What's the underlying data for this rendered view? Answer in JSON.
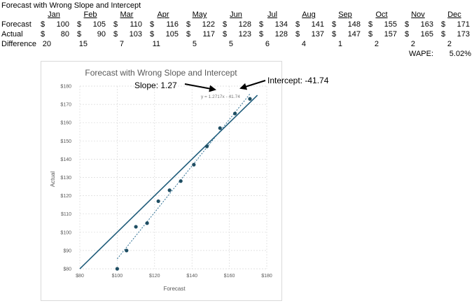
{
  "sheet": {
    "title": "Forecast with Wrong Slope and Intercept",
    "months": [
      "Jan",
      "Feb",
      "Mar",
      "Apr",
      "May",
      "Jun",
      "Jul",
      "Aug",
      "Sep",
      "Oct",
      "Nov",
      "Dec"
    ],
    "forecast_label": "Forecast",
    "actual_label": "Actual",
    "difference_label": "Difference",
    "currency": "$",
    "forecast": [
      100,
      105,
      110,
      116,
      122,
      128,
      134,
      141,
      148,
      155,
      163,
      171
    ],
    "actual": [
      80,
      90,
      103,
      105,
      117,
      123,
      128,
      137,
      147,
      157,
      165,
      173
    ],
    "difference": [
      20,
      15,
      7,
      11,
      5,
      5,
      6,
      4,
      1,
      2,
      2,
      2
    ],
    "wape_label": "WAPE:",
    "wape_value": "5.02%"
  },
  "annotations": {
    "slope": "Slope: 1.27",
    "intercept": "Intercept: -41.74"
  },
  "chart_data": {
    "type": "scatter",
    "title": "Forecast with Wrong Slope and Intercept",
    "xlabel": "Forecast",
    "ylabel": "Actual",
    "xlim": [
      80,
      180
    ],
    "ylim": [
      80,
      180
    ],
    "x_ticks": [
      "$80",
      "$100",
      "$120",
      "$140",
      "$160",
      "$180"
    ],
    "y_ticks": [
      "$80",
      "$90",
      "$100",
      "$110",
      "$120",
      "$130",
      "$140",
      "$150",
      "$160",
      "$170",
      "$180"
    ],
    "grid": true,
    "x": [
      100,
      105,
      110,
      116,
      122,
      128,
      134,
      141,
      148,
      155,
      163,
      171
    ],
    "y": [
      80,
      90,
      103,
      105,
      117,
      123,
      128,
      137,
      147,
      157,
      165,
      173
    ],
    "reference_line": {
      "slope": 1,
      "intercept": 0
    },
    "trendline": {
      "slope": 1.2717,
      "intercept": -41.74,
      "label": "y = 1.2717x - 41.74"
    },
    "colors": {
      "points": "#1f4e63",
      "reference": "#1f5c7a",
      "trend": "#2e6f93",
      "grid": "#d9d9d9"
    }
  }
}
